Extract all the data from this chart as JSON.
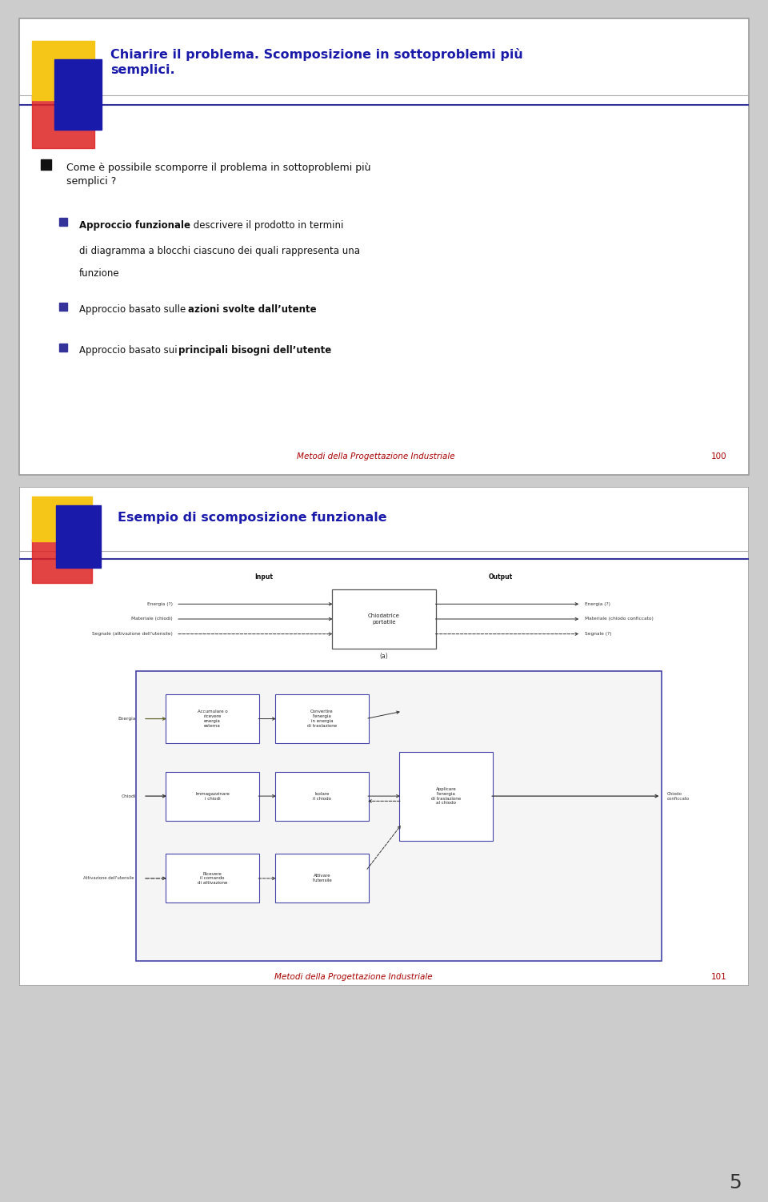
{
  "slide1": {
    "title": "Chiarire il problema. Scomposizione in sottoproblemi più\nsemplici.",
    "title_color": "#1a1aaa",
    "footer_text": "Metodi della Progettazione Industriale",
    "footer_number": "100",
    "footer_color": "#aa0000"
  },
  "slide2": {
    "title": "Esempio di scomposizione funzionale",
    "title_color": "#1a1aaa",
    "footer_text": "Metodi della Progettazione Industriale",
    "footer_number": "101",
    "footer_color": "#aa0000"
  },
  "page_number": "5",
  "page_bg": "#cccccc",
  "slide_border": "#999999"
}
